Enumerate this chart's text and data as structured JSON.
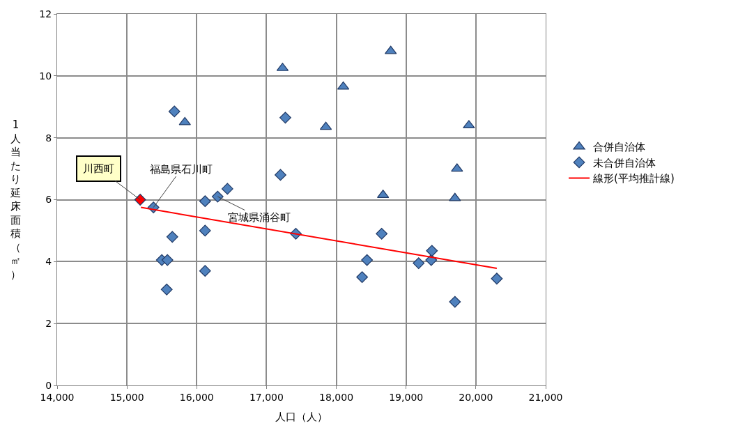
{
  "chart_data": {
    "type": "scatter",
    "xlabel": "人口（人）",
    "ylabel": "1人当たり延床面積（㎡）",
    "xlim": [
      14000,
      21000
    ],
    "xticks": [
      {
        "value": 14000,
        "label": "14,000"
      },
      {
        "value": 15000,
        "label": "15,000"
      },
      {
        "value": 16000,
        "label": "16,000"
      },
      {
        "value": 17000,
        "label": "17,000"
      },
      {
        "value": 18000,
        "label": "18,000"
      },
      {
        "value": 19000,
        "label": "19,000"
      },
      {
        "value": 20000,
        "label": "20,000"
      },
      {
        "value": 21000,
        "label": "21,000"
      }
    ],
    "ylim": [
      0,
      12
    ],
    "yticks": [
      0,
      2,
      4,
      6,
      8,
      10,
      12
    ],
    "grid": true,
    "legend": "right",
    "series": [
      {
        "name": "合併自治体",
        "marker": "triangle",
        "color": "#4f81bd",
        "x": [
          15830,
          17230,
          18100,
          18780,
          17850,
          18670,
          19730,
          19700,
          19900
        ],
        "values": [
          8.5,
          10.25,
          9.65,
          10.8,
          8.35,
          6.15,
          7.0,
          6.05,
          8.4
        ]
      },
      {
        "name": "未合併自治体",
        "marker": "diamond",
        "color": "#4f81bd",
        "colors": [
          "#4f81bd",
          "#4f81bd",
          "#4f81bd",
          "#ff0000",
          "#4f81bd",
          "#4f81bd",
          "#4f81bd",
          "#4f81bd",
          "#4f81bd",
          "#4f81bd",
          "#4f81bd",
          "#4f81bd",
          "#4f81bd",
          "#4f81bd",
          "#4f81bd",
          "#4f81bd",
          "#4f81bd",
          "#4f81bd",
          "#4f81bd",
          "#4f81bd",
          "#4f81bd",
          "#4f81bd",
          "#4f81bd"
        ],
        "x": [
          15680,
          17200,
          17270,
          15190,
          15380,
          16120,
          16300,
          16440,
          16120,
          15650,
          15500,
          15580,
          16120,
          15570,
          17420,
          18650,
          18440,
          18370,
          19180,
          19360,
          19370,
          19700,
          20300
        ],
        "values": [
          8.85,
          6.8,
          8.65,
          6.0,
          5.75,
          5.95,
          6.1,
          6.35,
          5.0,
          4.8,
          4.05,
          4.05,
          3.7,
          3.1,
          4.9,
          4.9,
          4.05,
          3.5,
          3.95,
          4.05,
          4.35,
          2.7,
          3.45
        ]
      },
      {
        "name": "線形(平均推計線)",
        "type": "line",
        "marker": "none",
        "color": "#ff0000",
        "x": [
          15200,
          20300
        ],
        "values": [
          5.75,
          3.78
        ]
      }
    ],
    "annotations": [
      {
        "text": "川西町",
        "x": 15190,
        "y": 6.0
      },
      {
        "text": "福島県石川町",
        "x": 15380,
        "y": 5.75
      },
      {
        "text": "宮城県涌谷町",
        "x": 16300,
        "y": 6.1
      }
    ]
  }
}
